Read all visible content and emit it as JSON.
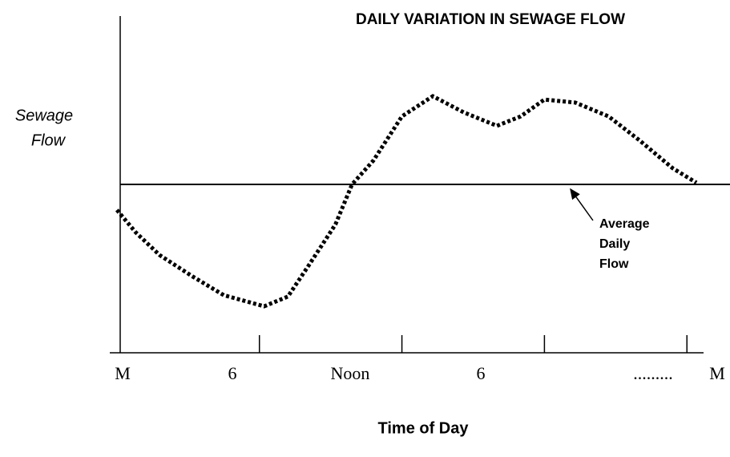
{
  "chart_data": {
    "type": "line",
    "title": "DAILY VARIATION IN SEWAGE FLOW",
    "y_label": [
      "Sewage",
      "Flow"
    ],
    "x_label": "Time of Day",
    "x_labels": [
      "M",
      "6",
      "Noon",
      "6",
      ".........",
      "M"
    ],
    "annotation": [
      "Average",
      "Daily",
      "Flow"
    ],
    "x": [
      0,
      0.8,
      1.8,
      3.2,
      4.5,
      6.2,
      7.2,
      8.1,
      9.2,
      9.9,
      10.8,
      12.0,
      13.3,
      14.6,
      16.0,
      17.0,
      18.0,
      19.3,
      20.7,
      22.0,
      23.4,
      24.4
    ],
    "values": [
      42.4,
      35.7,
      29,
      22.6,
      17.1,
      13.8,
      16.7,
      26.2,
      38.1,
      50,
      57.1,
      70.2,
      76.2,
      71.4,
      67.4,
      70.2,
      75.2,
      74.3,
      70.2,
      63.1,
      54.8,
      50.5
    ],
    "average": 50,
    "color": "#000000",
    "xlim": [
      -0.3,
      24.7
    ],
    "xticks": [
      6,
      12,
      18,
      24
    ],
    "ylim": [
      0,
      100
    ]
  }
}
